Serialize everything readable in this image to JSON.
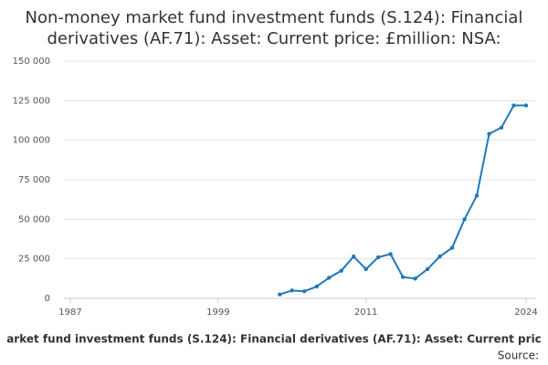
{
  "chart_data": {
    "type": "line",
    "title_lines": [
      "Non-money market fund investment funds (S.124): Financial",
      "derivatives (AF.71): Asset: Current price: £million: NSA:"
    ],
    "footer_text": "arket fund investment funds (S.124): Financial derivatives (AF.71): Asset: Current pric",
    "source_label": "Source:",
    "x": [
      2004,
      2005,
      2006,
      2007,
      2008,
      2009,
      2010,
      2011,
      2012,
      2013,
      2014,
      2015,
      2016,
      2017,
      2018,
      2019,
      2020,
      2021,
      2022,
      2023,
      2024
    ],
    "series": [
      {
        "name": "Financial derivatives",
        "color": "#1f7ab8",
        "values": [
          2500,
          5000,
          4500,
          7500,
          13000,
          17500,
          26500,
          18500,
          26000,
          28000,
          13500,
          12500,
          18500,
          26500,
          32000,
          50000,
          65000,
          104000,
          108000,
          122000,
          122000
        ]
      }
    ],
    "xlim": [
      1987,
      2024
    ],
    "xticks": [
      1987,
      1999,
      2011,
      2024
    ],
    "ylim": [
      0,
      150000
    ],
    "yticks": [
      0,
      {
        "value": 25000,
        "label": "25 000"
      },
      {
        "value": 50000,
        "label": "50 000"
      },
      {
        "value": 75000,
        "label": "75 000"
      },
      {
        "value": 100000,
        "label": "100 000"
      },
      {
        "value": 125000,
        "label": "125 000"
      },
      {
        "value": 150000,
        "label": "150 000"
      }
    ],
    "grid": true
  }
}
